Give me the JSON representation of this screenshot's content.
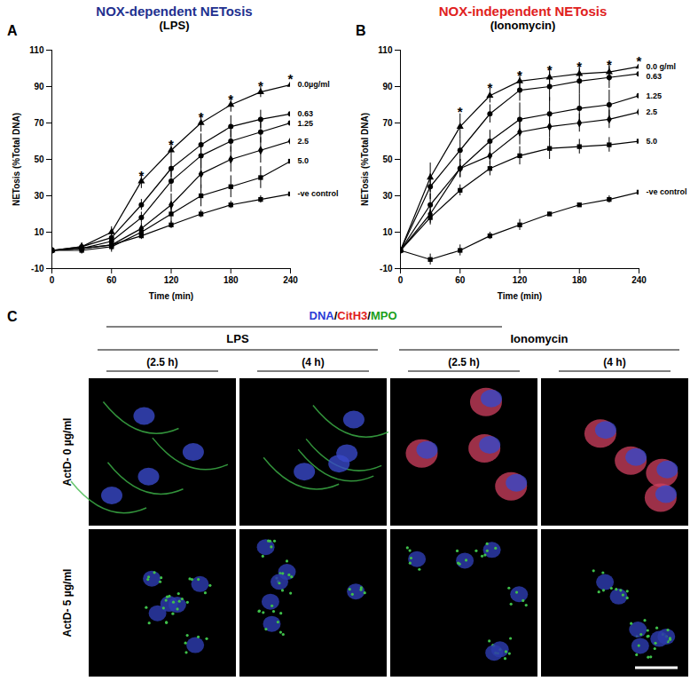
{
  "chart_data": [
    {
      "type": "line",
      "panel": "A",
      "title": "NOX-dependent NETosis",
      "subtitle": "(LPS)",
      "color": "#22308f",
      "x_label": "Time (min)",
      "y_label": "NETosis (%Total DNA)",
      "x": [
        0,
        30,
        60,
        90,
        120,
        150,
        180,
        210,
        240
      ],
      "xlim": [
        0,
        240
      ],
      "xticks": [
        0,
        60,
        120,
        180,
        240
      ],
      "ylim": [
        -10,
        110
      ],
      "yticks": [
        -10,
        10,
        30,
        50,
        70,
        90,
        110
      ],
      "series": [
        {
          "name": "0.0µg/ml",
          "color": "#000000",
          "marker": "triangle",
          "values": [
            0,
            2,
            10,
            38,
            55,
            70,
            80,
            87,
            91
          ],
          "errors": [
            1,
            2,
            3,
            4,
            5,
            5,
            4,
            3,
            3
          ]
        },
        {
          "name": "0.63",
          "color": "#000000",
          "marker": "circle",
          "values": [
            0,
            2,
            7,
            25,
            45,
            58,
            68,
            72,
            75
          ],
          "errors": [
            1,
            2,
            3,
            3,
            5,
            6,
            6,
            5,
            4
          ]
        },
        {
          "name": "1.25",
          "color": "#000000",
          "marker": "circle",
          "values": [
            0,
            1,
            5,
            18,
            38,
            52,
            60,
            65,
            70
          ],
          "errors": [
            1,
            2,
            3,
            3,
            6,
            7,
            6,
            6,
            5
          ]
        },
        {
          "name": "2.5",
          "color": "#000000",
          "marker": "diamond",
          "values": [
            0,
            1,
            3,
            12,
            25,
            42,
            50,
            55,
            60
          ],
          "errors": [
            1,
            2,
            3,
            3,
            6,
            8,
            7,
            7,
            6
          ]
        },
        {
          "name": "5.0",
          "color": "#000000",
          "marker": "square",
          "values": [
            0,
            0,
            2,
            10,
            20,
            30,
            35,
            40,
            49
          ],
          "errors": [
            1,
            2,
            3,
            3,
            5,
            6,
            6,
            6,
            3
          ]
        },
        {
          "name": "-ve control",
          "color": "#000000",
          "marker": "square",
          "values": [
            0,
            1,
            3,
            8,
            14,
            20,
            25,
            28,
            31
          ],
          "errors": [
            1,
            1,
            1,
            2,
            2,
            2,
            2,
            2,
            1
          ]
        }
      ],
      "annotations": [
        {
          "text": "*",
          "x": 90,
          "y": 43
        },
        {
          "text": "*",
          "x": 120,
          "y": 60
        },
        {
          "text": "*",
          "x": 150,
          "y": 75
        },
        {
          "text": "*",
          "x": 180,
          "y": 85
        },
        {
          "text": "*",
          "x": 210,
          "y": 92
        },
        {
          "text": "*",
          "x": 240,
          "y": 96
        }
      ]
    },
    {
      "type": "line",
      "panel": "B",
      "title": "NOX-independent NETosis",
      "subtitle": "(Ionomycin)",
      "color": "#e02020",
      "x_label": "Time (min)",
      "y_label": "NETosis (%Total DNA)",
      "x": [
        0,
        30,
        60,
        90,
        120,
        150,
        180,
        210,
        240
      ],
      "xlim": [
        0,
        240
      ],
      "xticks": [
        0,
        60,
        120,
        180,
        240
      ],
      "ylim": [
        -10,
        110
      ],
      "yticks": [
        -10,
        10,
        30,
        50,
        70,
        90,
        110
      ],
      "series": [
        {
          "name": "0.0 g/ml",
          "color": "#000000",
          "marker": "triangle",
          "values": [
            0,
            40,
            68,
            85,
            93,
            95,
            97,
            98,
            101
          ],
          "errors": [
            1,
            8,
            7,
            4,
            5,
            6,
            5,
            5,
            5
          ]
        },
        {
          "name": "0.63",
          "color": "#000000",
          "marker": "circle",
          "values": [
            0,
            35,
            55,
            75,
            88,
            90,
            93,
            95,
            97
          ],
          "errors": [
            1,
            7,
            6,
            5,
            6,
            8,
            7,
            6,
            5
          ]
        },
        {
          "name": "1.25",
          "color": "#000000",
          "marker": "circle",
          "values": [
            0,
            25,
            45,
            60,
            72,
            75,
            78,
            80,
            85
          ],
          "errors": [
            1,
            6,
            5,
            6,
            9,
            9,
            8,
            8,
            7
          ]
        },
        {
          "name": "2.5",
          "color": "#000000",
          "marker": "diamond",
          "values": [
            0,
            20,
            45,
            52,
            65,
            68,
            70,
            72,
            76
          ],
          "errors": [
            1,
            5,
            5,
            5,
            7,
            6,
            5,
            5,
            6
          ]
        },
        {
          "name": "5.0",
          "color": "#000000",
          "marker": "square",
          "values": [
            0,
            18,
            33,
            45,
            52,
            56,
            57,
            58,
            60
          ],
          "errors": [
            1,
            4,
            3,
            4,
            5,
            6,
            4,
            4,
            5
          ]
        },
        {
          "name": "-ve control",
          "color": "#000000",
          "marker": "square",
          "values": [
            0,
            -5,
            0,
            8,
            14,
            20,
            25,
            28,
            32
          ],
          "errors": [
            1,
            3,
            3,
            2,
            3,
            1,
            1,
            2,
            1
          ]
        }
      ],
      "annotations": [
        {
          "text": "*",
          "x": 60,
          "y": 78
        },
        {
          "text": "*",
          "x": 90,
          "y": 91
        },
        {
          "text": "*",
          "x": 120,
          "y": 98
        },
        {
          "text": "*",
          "x": 150,
          "y": 101
        },
        {
          "text": "*",
          "x": 180,
          "y": 103
        },
        {
          "text": "*",
          "x": 210,
          "y": 104
        },
        {
          "text": "*",
          "x": 240,
          "y": 106
        }
      ]
    }
  ],
  "panel_c": {
    "panel": "C",
    "stains": [
      {
        "text": "DNA",
        "color": "#2b3bd6"
      },
      {
        "text": "CitH3",
        "color": "#e02020"
      },
      {
        "text": "MPO",
        "color": "#1aa01a"
      }
    ],
    "separator": "/",
    "groups": [
      {
        "label": "LPS",
        "times": [
          "(2.5 h)",
          "(4 h)"
        ]
      },
      {
        "label": "Ionomycin",
        "times": [
          "(2.5 h)",
          "(4 h)"
        ]
      }
    ],
    "rows": [
      "ActD- 0 µg/ml",
      "ActD- 5 µg/ml"
    ]
  }
}
